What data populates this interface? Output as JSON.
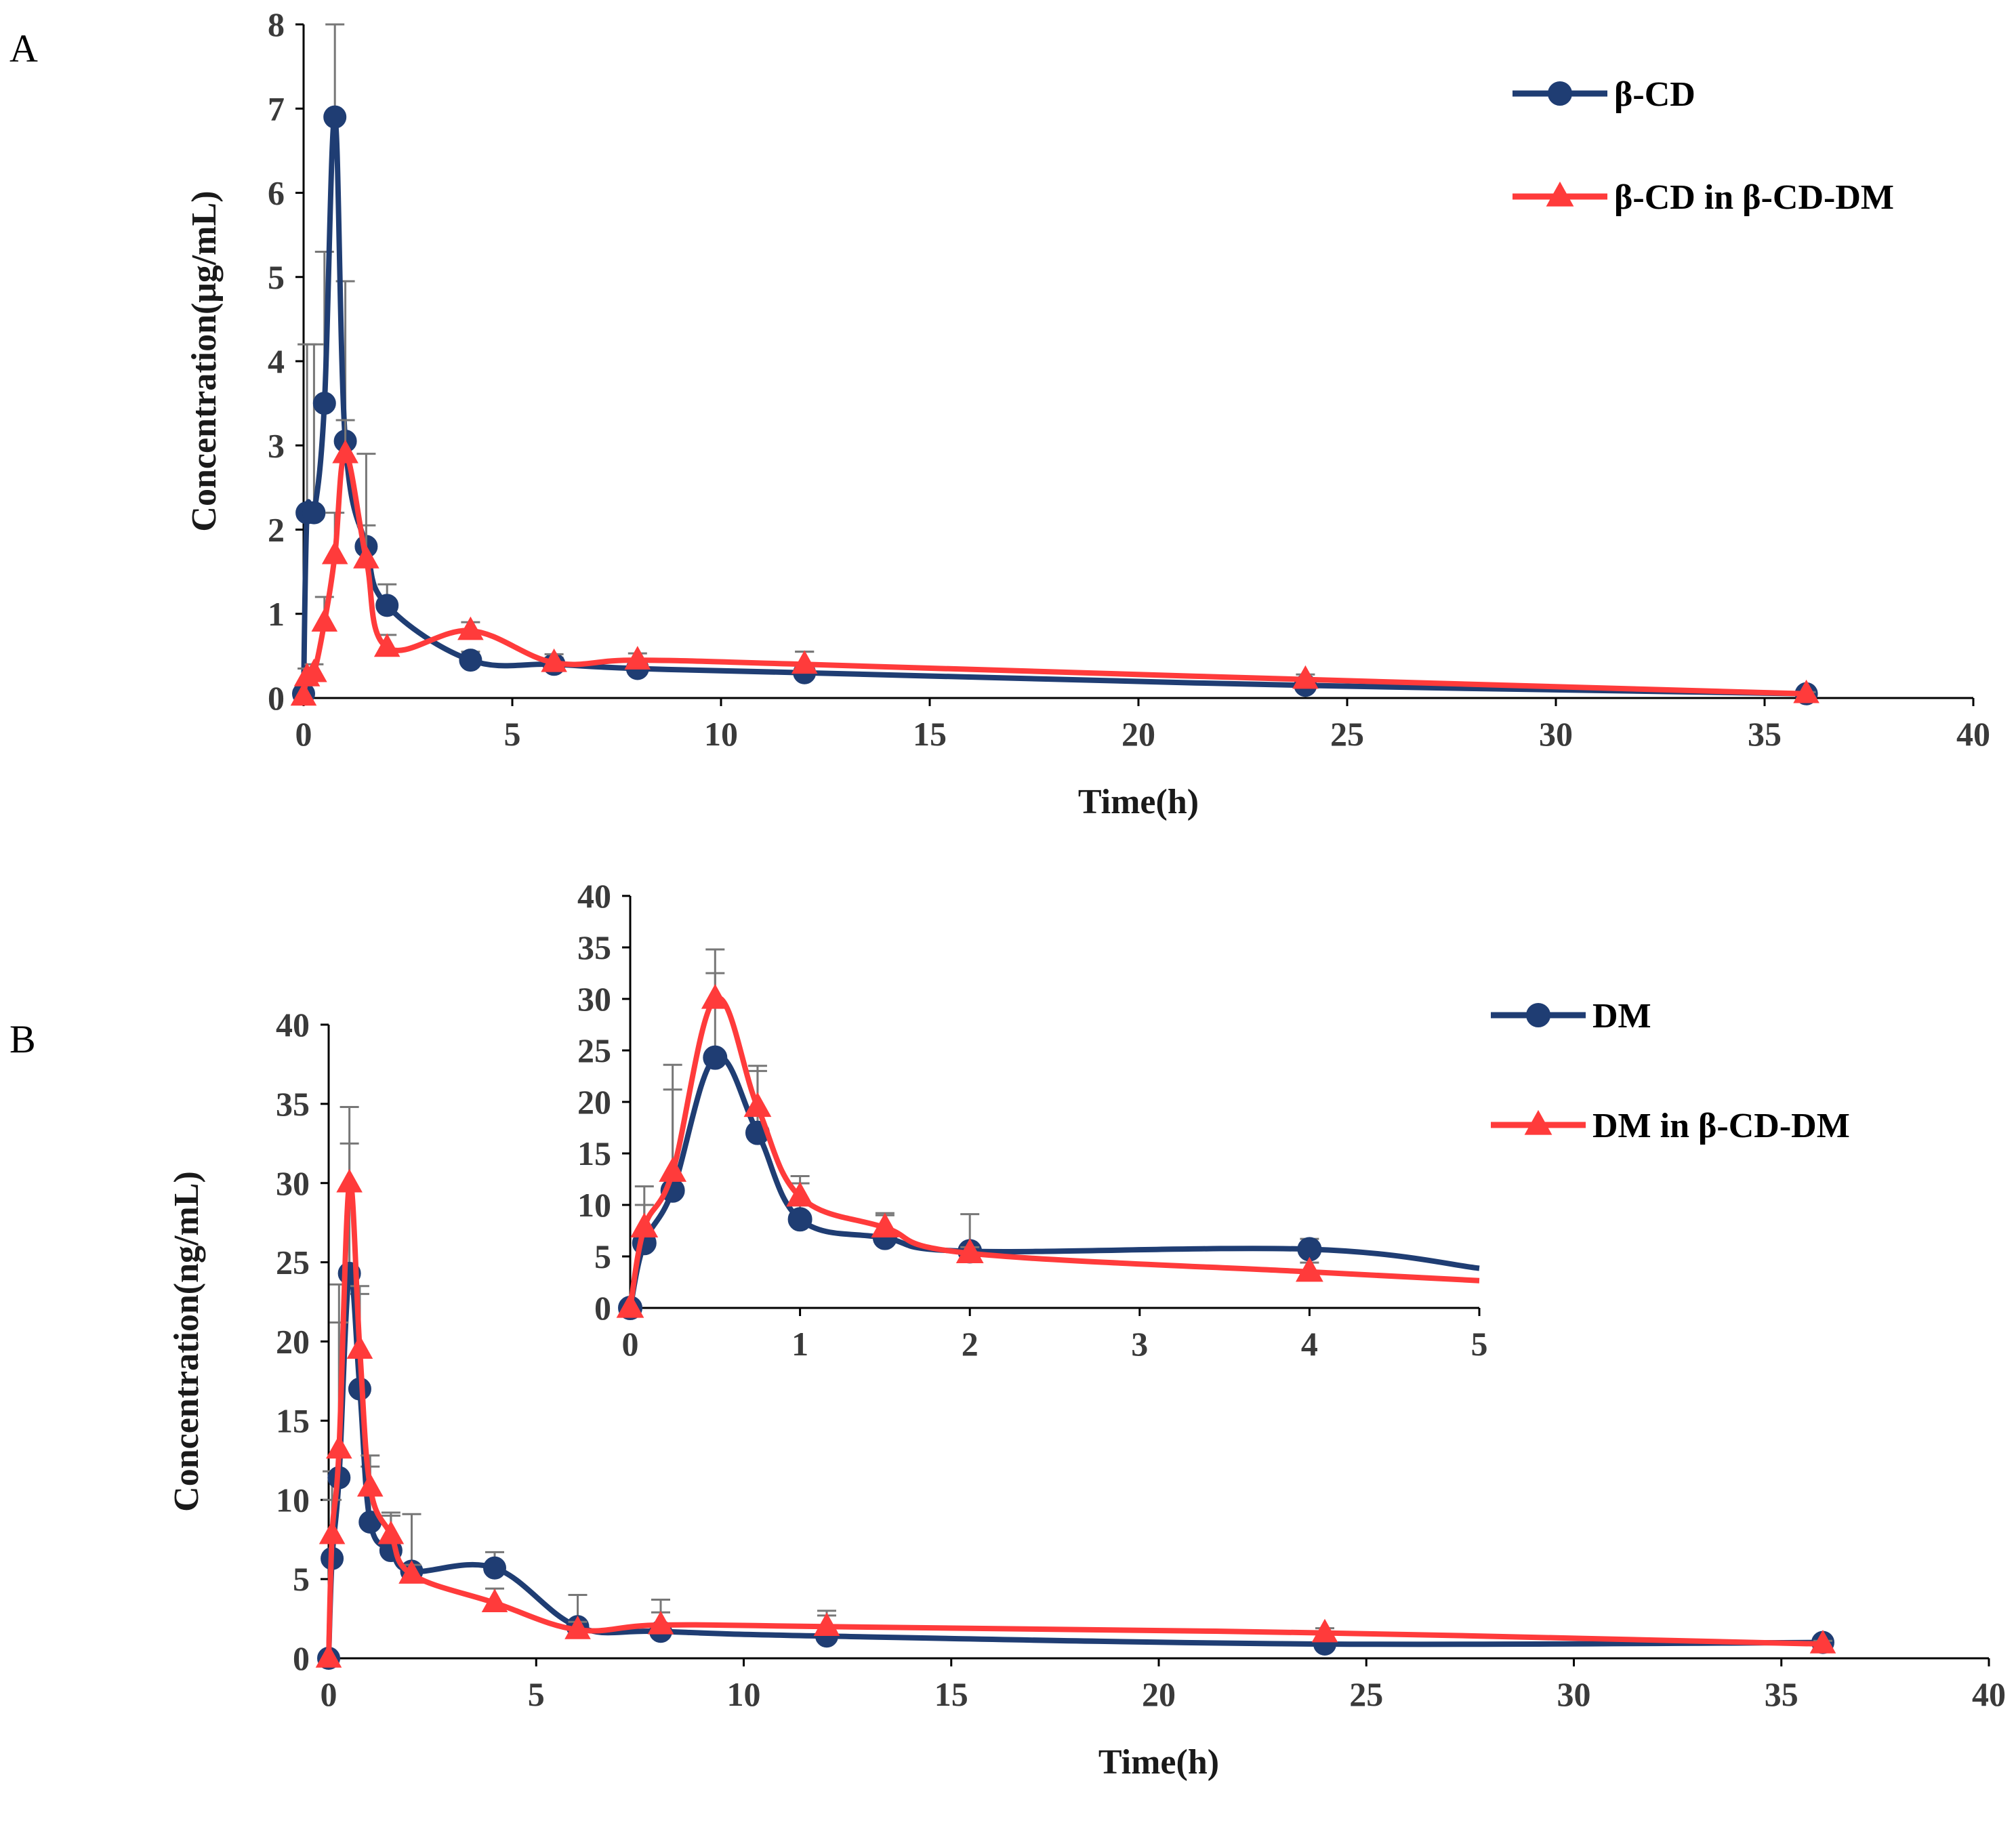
{
  "chart_data": [
    {
      "panel": "A",
      "type": "line",
      "xlabel": "Time(h)",
      "ylabel": "Concentration(μg/mL)",
      "xlim": [
        0,
        40
      ],
      "ylim": [
        0,
        8
      ],
      "xticks": [
        0,
        5,
        10,
        15,
        20,
        25,
        30,
        35,
        40
      ],
      "yticks": [
        0,
        1,
        2,
        3,
        4,
        5,
        6,
        7,
        8
      ],
      "grid": false,
      "legend_position": "top-right",
      "series": [
        {
          "name": "β-CD",
          "color": "#1f3d73",
          "marker": "circle",
          "x": [
            0,
            0.083,
            0.25,
            0.5,
            0.75,
            1,
            1.5,
            2,
            4,
            6,
            8,
            12,
            24,
            36
          ],
          "y": [
            0.05,
            2.2,
            2.2,
            3.5,
            6.9,
            3.05,
            1.8,
            1.1,
            0.45,
            0.4,
            0.35,
            0.3,
            0.15,
            0.05
          ],
          "err": [
            0,
            2.0,
            2.0,
            1.8,
            1.1,
            1.9,
            1.1,
            0.25,
            0.1,
            0.08,
            0.07,
            0.25,
            0.05,
            0.02
          ]
        },
        {
          "name": "β-CD in β-CD-DM",
          "color": "#ff3b3b",
          "marker": "triangle",
          "x": [
            0,
            0.083,
            0.25,
            0.5,
            0.75,
            1,
            1.5,
            2,
            4,
            6,
            8,
            12,
            24,
            36
          ],
          "y": [
            0.02,
            0.25,
            0.3,
            0.9,
            1.7,
            2.9,
            1.65,
            0.6,
            0.8,
            0.42,
            0.45,
            0.4,
            0.22,
            0.05
          ],
          "err": [
            0,
            0.1,
            0.1,
            0.3,
            0.5,
            0.4,
            0.4,
            0.15,
            0.1,
            0.1,
            0.08,
            0.15,
            0.06,
            0.02
          ]
        }
      ]
    },
    {
      "panel": "B",
      "type": "line",
      "xlabel": "Time(h)",
      "ylabel": "Concentration(ng/mL)",
      "xlim": [
        0,
        40
      ],
      "ylim": [
        0,
        40
      ],
      "xticks": [
        0,
        5,
        10,
        15,
        20,
        25,
        30,
        35,
        40
      ],
      "yticks": [
        0,
        5,
        10,
        15,
        20,
        25,
        30,
        35,
        40
      ],
      "grid": false,
      "legend_position": "top-right",
      "series": [
        {
          "name": "DM",
          "color": "#1f3d73",
          "marker": "circle",
          "x": [
            0,
            0.083,
            0.25,
            0.5,
            0.75,
            1,
            1.5,
            2,
            4,
            6,
            8,
            12,
            24,
            36
          ],
          "y": [
            0,
            6.3,
            11.4,
            24.3,
            17,
            8.6,
            6.8,
            5.5,
            5.7,
            2,
            1.7,
            1.4,
            0.9,
            1.0
          ],
          "err": [
            0,
            5.5,
            12.2,
            8.2,
            6.0,
            3.5,
            2.2,
            3.6,
            1.0,
            2.0,
            2.0,
            1.3,
            0.2,
            0.2
          ]
        },
        {
          "name": "DM in β-CD-DM",
          "color": "#ff3b3b",
          "marker": "triangle",
          "x": [
            0,
            0.083,
            0.25,
            0.5,
            0.75,
            1,
            1.5,
            2,
            4,
            6,
            8,
            12,
            24,
            36
          ],
          "y": [
            0,
            7.8,
            13.2,
            30,
            19.5,
            10.8,
            7.8,
            5.3,
            3.5,
            1.8,
            2.1,
            2.0,
            1.6,
            0.9
          ],
          "err": [
            0,
            2.2,
            8.0,
            4.8,
            4.0,
            2.0,
            1.4,
            0.6,
            0.9,
            0.5,
            0.8,
            1.0,
            0.3,
            0.2
          ]
        }
      ],
      "inset": {
        "xlim": [
          0,
          5
        ],
        "ylim": [
          0,
          40
        ],
        "xticks": [
          0,
          1,
          2,
          3,
          4,
          5
        ],
        "yticks": [
          0,
          5,
          10,
          15,
          20,
          25,
          30,
          35,
          40
        ]
      }
    }
  ]
}
